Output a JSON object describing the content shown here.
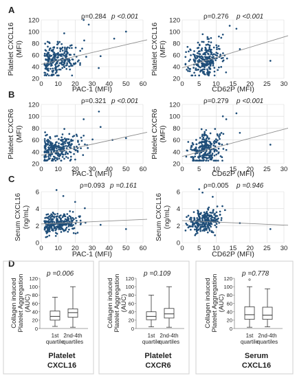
{
  "chart_data": {
    "panel_labels": [
      "A",
      "B",
      "C",
      "D"
    ],
    "scatter_plots": [
      {
        "id": "A-left",
        "type": "scatter",
        "panel": "A",
        "ylabel": [
          "Platelet CXCL16",
          "(MFI)"
        ],
        "xlabel": "PAC-1 (MFI)",
        "xlim": [
          0,
          60
        ],
        "ylim": [
          20,
          120
        ],
        "xticks": [
          "0",
          "10",
          "20",
          "30",
          "40",
          "50",
          "60"
        ],
        "yticks": [
          "20",
          "40",
          "60",
          "80",
          "100",
          "120"
        ],
        "rho": "ρ=0.284",
        "pval": "p <0.001",
        "fit": [
          [
            0,
            44
          ],
          [
            63,
            86
          ]
        ],
        "seed": 11,
        "cloud": {
          "xmean": 9,
          "xsd": 7,
          "ymean": 52,
          "ysd": 14,
          "n": 260,
          "outliers": [
            [
              50,
              100
            ],
            [
              35,
              58
            ],
            [
              28,
              112
            ],
            [
              25,
              120
            ],
            [
              43,
              88
            ]
          ]
        }
      },
      {
        "id": "A-right",
        "type": "scatter",
        "panel": "A",
        "ylabel": [
          "Platelet CXCL16",
          "(MFI)"
        ],
        "xlabel": "CD62P (MFI)",
        "xlim": [
          0,
          30
        ],
        "ylim": [
          20,
          120
        ],
        "xticks": [
          "0",
          "5",
          "10",
          "15",
          "20",
          "25",
          "30"
        ],
        "yticks": [
          "20",
          "40",
          "60",
          "80",
          "100",
          "120"
        ],
        "rho": "ρ=0.276",
        "pval": "p <0.001",
        "fit": [
          [
            0,
            38
          ],
          [
            32,
            93
          ]
        ],
        "seed": 23,
        "cloud": {
          "xmean": 7,
          "xsd": 2.4,
          "ymean": 53,
          "ysd": 14,
          "n": 260,
          "outliers": [
            [
              26,
              50
            ],
            [
              17,
              70
            ],
            [
              16,
              105
            ],
            [
              14,
              110
            ],
            [
              12,
              95
            ]
          ]
        }
      },
      {
        "id": "B-left",
        "type": "scatter",
        "panel": "B",
        "ylabel": [
          "Platelet CXCR6",
          "(MFI)"
        ],
        "xlabel": "PAC-1 (MFI)",
        "xlim": [
          0,
          60
        ],
        "ylim": [
          20,
          120
        ],
        "xticks": [
          "0",
          "10",
          "20",
          "30",
          "40",
          "50",
          "60"
        ],
        "yticks": [
          "20",
          "40",
          "60",
          "80",
          "100",
          "120"
        ],
        "rho": "ρ=0.321",
        "pval": "p <0.001",
        "fit": [
          [
            0,
            34
          ],
          [
            63,
            73
          ]
        ],
        "seed": 37,
        "cloud": {
          "xmean": 9,
          "xsd": 7,
          "ymean": 44,
          "ysd": 13,
          "n": 260,
          "outliers": [
            [
              50,
              63
            ],
            [
              35,
              82
            ],
            [
              34,
              108
            ],
            [
              25,
              95
            ],
            [
              42,
              60
            ]
          ]
        }
      },
      {
        "id": "B-right",
        "type": "scatter",
        "panel": "B",
        "ylabel": [
          "Platelet CXCR6",
          "(MFI)"
        ],
        "xlabel": "CD62P (MFI)",
        "xlim": [
          0,
          30
        ],
        "ylim": [
          20,
          120
        ],
        "xticks": [
          "0",
          "5",
          "10",
          "15",
          "20",
          "25",
          "30"
        ],
        "yticks": [
          "20",
          "40",
          "60",
          "80",
          "100",
          "120"
        ],
        "rho": "ρ=0.279",
        "pval": "p <0.001",
        "fit": [
          [
            0,
            32
          ],
          [
            32,
            80
          ]
        ],
        "seed": 41,
        "cloud": {
          "xmean": 7,
          "xsd": 2.4,
          "ymean": 45,
          "ysd": 13,
          "n": 260,
          "outliers": [
            [
              26,
              52
            ],
            [
              17,
              72
            ],
            [
              16,
              105
            ],
            [
              13,
              95
            ],
            [
              12,
              100
            ]
          ]
        }
      },
      {
        "id": "C-left",
        "type": "scatter",
        "panel": "C",
        "ylabel": [
          "Serum CXCL16",
          "(ng/mL)"
        ],
        "xlabel": "PAC-1 (MFI)",
        "xlim": [
          0,
          60
        ],
        "ylim": [
          0,
          6
        ],
        "xticks": [
          "0",
          "10",
          "20",
          "30",
          "40",
          "50",
          "60"
        ],
        "yticks": [
          "0",
          "2",
          "4",
          "6"
        ],
        "rho": "ρ=0.093",
        "pval": "p =0.161",
        "fit": [
          [
            0,
            2.2
          ],
          [
            63,
            2.75
          ]
        ],
        "seed": 53,
        "cloud": {
          "xmean": 9,
          "xsd": 7,
          "ymean": 2.3,
          "ysd": 0.6,
          "n": 260,
          "outliers": [
            [
              50,
              1.6
            ],
            [
              35,
              2.1
            ],
            [
              13,
              5.5
            ],
            [
              9,
              6.2
            ],
            [
              20,
              4.8
            ]
          ]
        }
      },
      {
        "id": "C-right",
        "type": "scatter",
        "panel": "C",
        "ylabel": [
          "Serum CXCL16",
          "(ng/mL)"
        ],
        "xlabel": "CD62P (MFI)",
        "xlim": [
          0,
          30
        ],
        "ylim": [
          0,
          6
        ],
        "xticks": [
          "0",
          "5",
          "10",
          "15",
          "20",
          "25",
          "30"
        ],
        "yticks": [
          "0",
          "2",
          "4",
          "6"
        ],
        "rho": "ρ=0.005",
        "pval": "p =0.946",
        "fit": [
          [
            0,
            2.6
          ],
          [
            32,
            2.05
          ]
        ],
        "seed": 67,
        "cloud": {
          "xmean": 6.5,
          "xsd": 2.3,
          "ymean": 2.4,
          "ysd": 0.6,
          "n": 260,
          "outliers": [
            [
              26,
              1.6
            ],
            [
              17,
              2.3
            ],
            [
              5,
              6.3
            ],
            [
              6,
              5.9
            ],
            [
              9,
              5.4
            ]
          ]
        }
      }
    ],
    "box_plots": [
      {
        "id": "D-1",
        "type": "box",
        "panel": "D",
        "ylabel": [
          "Collagen induced",
          "Platelet Aggregation",
          "(AUC)"
        ],
        "ylim": [
          0,
          120
        ],
        "yticks": [
          "0",
          "20",
          "40",
          "60",
          "80",
          "100",
          "120"
        ],
        "pval": "p =0.006",
        "group_label": [
          "Platelet",
          "CXCL16"
        ],
        "categories": [
          [
            "1st",
            "quartile"
          ],
          [
            "2nd-4th",
            "quartiles"
          ]
        ],
        "boxes": [
          {
            "min": 5,
            "q1": 20,
            "median": 29,
            "q3": 42,
            "max": 75,
            "outliers": []
          },
          {
            "min": 3,
            "q1": 27,
            "median": 38,
            "q3": 47,
            "max": 100,
            "outliers": []
          }
        ]
      },
      {
        "id": "D-2",
        "type": "box",
        "panel": "D",
        "ylabel": [
          "Collagen induced",
          "Platelet Aggregation",
          "(AUC)"
        ],
        "ylim": [
          0,
          120
        ],
        "yticks": [
          "0",
          "20",
          "40",
          "60",
          "80",
          "100",
          "120"
        ],
        "pval": "p =0.109",
        "group_label": [
          "Platelet",
          "CXCR6"
        ],
        "categories": [
          [
            "1st",
            "quartile"
          ],
          [
            "2nd-4th",
            "quartiles"
          ]
        ],
        "boxes": [
          {
            "min": 4,
            "q1": 21,
            "median": 29,
            "q3": 40,
            "max": 80,
            "outliers": []
          },
          {
            "min": 3,
            "q1": 25,
            "median": 35,
            "q3": 48,
            "max": 100,
            "outliers": []
          }
        ]
      },
      {
        "id": "D-3",
        "type": "box",
        "panel": "D",
        "ylabel": [
          "Collagen induced",
          "Platelet Aggregation",
          "(AUC)"
        ],
        "ylim": [
          0,
          120
        ],
        "yticks": [
          "0",
          "20",
          "40",
          "60",
          "80",
          "100",
          "120"
        ],
        "pval": "p =0.778",
        "group_label": [
          "Serum",
          "CXCL16"
        ],
        "categories": [
          [
            "1st",
            "quartile"
          ],
          [
            "2nd-4th",
            "quartiles"
          ]
        ],
        "boxes": [
          {
            "min": 3,
            "q1": 22,
            "median": 33,
            "q3": 52,
            "max": 100,
            "outliers": [
              117
            ]
          },
          {
            "min": 4,
            "q1": 22,
            "median": 32,
            "q3": 51,
            "max": 95,
            "outliers": []
          }
        ]
      }
    ]
  },
  "colors": {
    "dot": "#1f4e79",
    "fit": "#8c8c8c",
    "grid": "#d9d9d9",
    "axis": "#888888",
    "text": "#222222",
    "frame": "#cfcfcf"
  }
}
